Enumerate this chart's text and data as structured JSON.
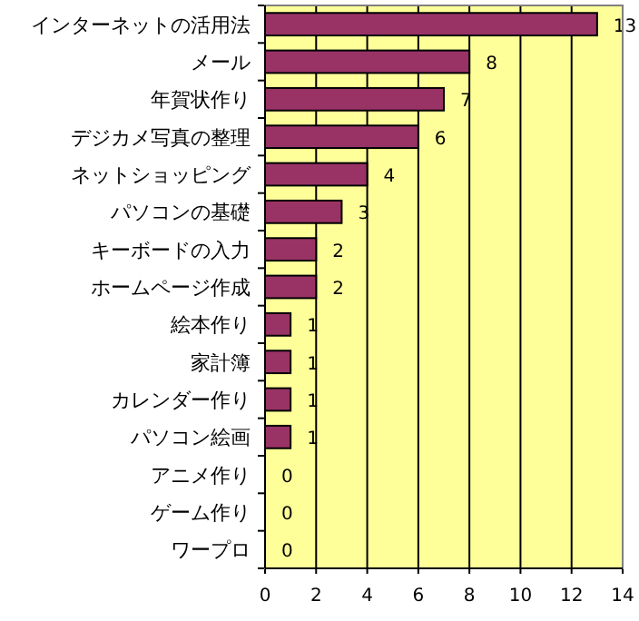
{
  "chart_data": {
    "type": "bar",
    "orientation": "horizontal",
    "categories": [
      "インターネットの活用法",
      "メール",
      "年賀状作り",
      "デジカメ写真の整理",
      "ネットショッピング",
      "パソコンの基礎",
      "キーボードの入力",
      "ホームページ作成",
      "絵本作り",
      "家計簿",
      "カレンダー作り",
      "パソコン絵画",
      "アニメ作り",
      "ゲーム作り",
      "ワープロ"
    ],
    "values": [
      13,
      8,
      7,
      6,
      4,
      3,
      2,
      2,
      1,
      1,
      1,
      1,
      0,
      0,
      0
    ],
    "color": "#993366",
    "xlim": [
      0,
      14
    ],
    "xticks": [
      0,
      2,
      4,
      6,
      8,
      10,
      12,
      14
    ],
    "grid": "x",
    "data_labels": true
  }
}
